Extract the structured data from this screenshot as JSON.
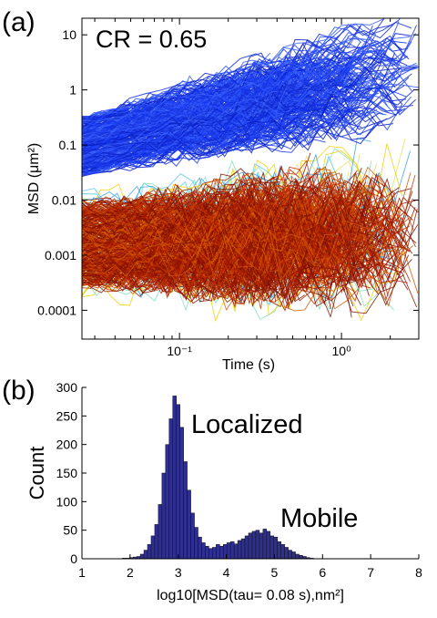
{
  "figure": {
    "panel_a_label": "(a)",
    "panel_b_label": "(b)"
  },
  "chart_data": [
    {
      "type": "line",
      "panel": "(a)",
      "annotation": "CR = 0.65",
      "xlabel": "Time (s)",
      "ylabel": "MSD (μm²)",
      "xscale": "log",
      "yscale": "log",
      "xlim": [
        0.025,
        3.0
      ],
      "ylim": [
        3e-05,
        20
      ],
      "xticks": [
        {
          "value": 0.1,
          "label": "10⁻¹"
        },
        {
          "value": 1,
          "label": "10⁰"
        }
      ],
      "yticks": [
        {
          "value": 10,
          "label": "10"
        },
        {
          "value": 1,
          "label": "1"
        },
        {
          "value": 0.1,
          "label": "0.1"
        },
        {
          "value": 0.01,
          "label": "0.01"
        },
        {
          "value": 0.001,
          "label": "0.001"
        },
        {
          "value": 0.0001,
          "label": "0.0001"
        }
      ],
      "grid": false,
      "series_groups": [
        {
          "group": "mobile",
          "color": "#1f3ff0",
          "msd_at_0_025s_range": [
            0.03,
            0.3
          ],
          "slope_range": [
            0.4,
            1.0
          ]
        },
        {
          "group": "localized",
          "color": "#9a1800",
          "msd_at_0_025s_range": [
            0.0003,
            0.008
          ],
          "slope_range": [
            -0.1,
            0.25
          ]
        }
      ]
    },
    {
      "type": "bar",
      "panel": "(b)",
      "annotations": [
        "Localized",
        "Mobile"
      ],
      "xlabel": "log10[MSD(tau= 0.08 s),nm²]",
      "ylabel": "Count",
      "xlim": [
        1,
        8
      ],
      "ylim": [
        0,
        300
      ],
      "xticks": [
        1,
        2,
        3,
        4,
        5,
        6,
        7,
        8
      ],
      "yticks": [
        0,
        50,
        100,
        150,
        200,
        250,
        300
      ],
      "bar_color": "#2f2f8f",
      "bin_width": 0.075,
      "bin_centers": [
        1.875,
        1.95,
        2.025,
        2.1,
        2.175,
        2.25,
        2.325,
        2.4,
        2.475,
        2.55,
        2.625,
        2.7,
        2.775,
        2.85,
        2.925,
        3.0,
        3.075,
        3.15,
        3.225,
        3.3,
        3.375,
        3.45,
        3.525,
        3.6,
        3.675,
        3.75,
        3.825,
        3.9,
        3.975,
        4.05,
        4.125,
        4.2,
        4.275,
        4.35,
        4.425,
        4.5,
        4.575,
        4.65,
        4.725,
        4.8,
        4.875,
        4.95,
        5.025,
        5.1,
        5.175,
        5.25,
        5.325,
        5.4,
        5.475,
        5.55,
        5.625,
        5.7,
        5.775
      ],
      "values": [
        1,
        1,
        2,
        3,
        4,
        8,
        15,
        25,
        40,
        60,
        95,
        150,
        200,
        245,
        285,
        270,
        230,
        170,
        120,
        80,
        55,
        38,
        28,
        22,
        18,
        20,
        25,
        22,
        25,
        28,
        30,
        26,
        32,
        35,
        40,
        45,
        48,
        50,
        45,
        52,
        48,
        40,
        38,
        30,
        25,
        20,
        15,
        12,
        8,
        6,
        4,
        2,
        1
      ]
    }
  ]
}
